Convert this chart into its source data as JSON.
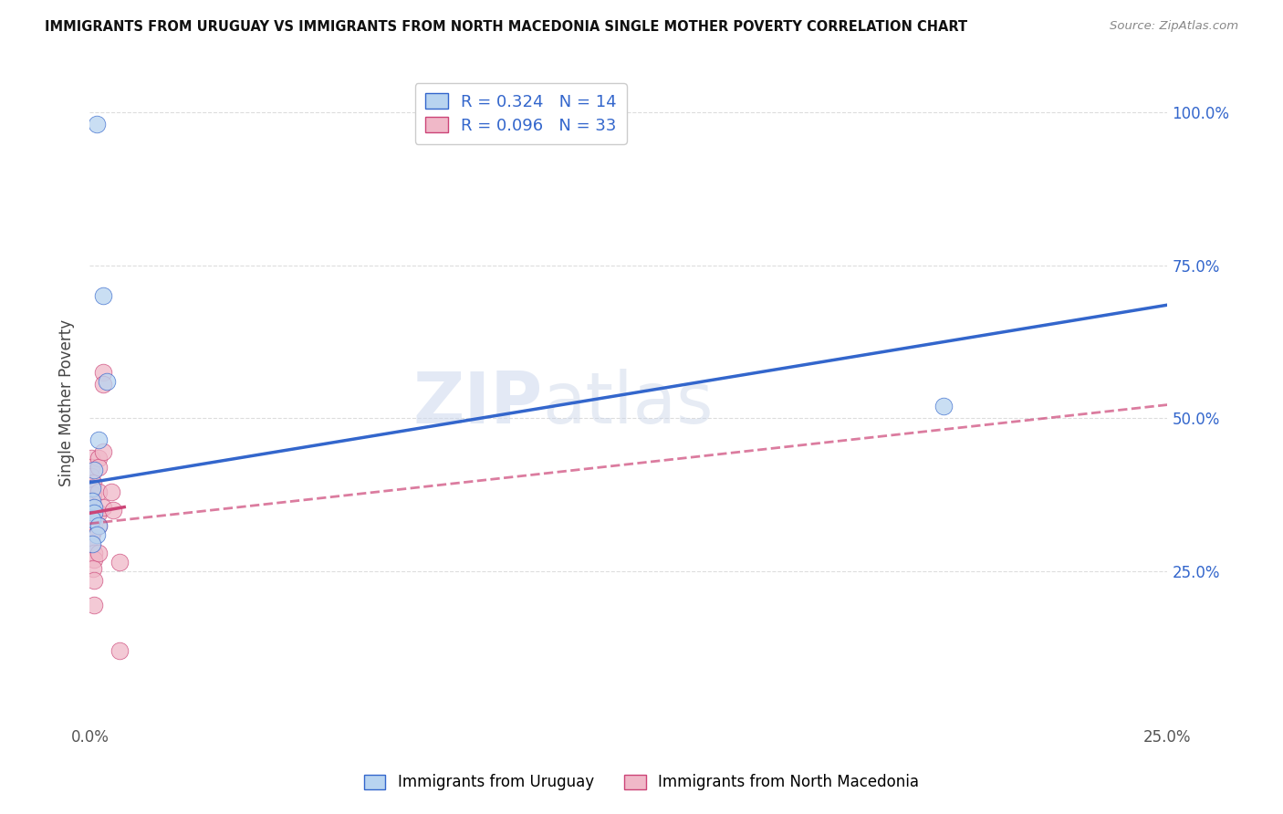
{
  "title": "IMMIGRANTS FROM URUGUAY VS IMMIGRANTS FROM NORTH MACEDONIA SINGLE MOTHER POVERTY CORRELATION CHART",
  "source": "Source: ZipAtlas.com",
  "ylabel": "Single Mother Poverty",
  "watermark_zip": "ZIP",
  "watermark_atlas": "atlas",
  "legend_label1": "Immigrants from Uruguay",
  "legend_label2": "Immigrants from North Macedonia",
  "legend_r1": "R = 0.324",
  "legend_n1": "N = 14",
  "legend_r2": "R = 0.096",
  "legend_n2": "N = 33",
  "uruguay_color": "#b8d4f0",
  "north_macedonia_color": "#f0b8c8",
  "trendline_uruguay_color": "#3366cc",
  "trendline_nm_color": "#cc4477",
  "background_color": "#ffffff",
  "grid_color": "#dddddd",
  "uruguay_points": [
    [
      0.0015,
      0.98
    ],
    [
      0.003,
      0.7
    ],
    [
      0.004,
      0.56
    ],
    [
      0.002,
      0.465
    ],
    [
      0.001,
      0.415
    ],
    [
      0.0005,
      0.385
    ],
    [
      0.0005,
      0.365
    ],
    [
      0.001,
      0.355
    ],
    [
      0.001,
      0.345
    ],
    [
      0.0005,
      0.335
    ],
    [
      0.002,
      0.325
    ],
    [
      0.0015,
      0.31
    ],
    [
      0.0005,
      0.295
    ],
    [
      0.198,
      0.52
    ]
  ],
  "nm_points": [
    [
      0.0003,
      0.435
    ],
    [
      0.0003,
      0.42
    ],
    [
      0.0003,
      0.405
    ],
    [
      0.0008,
      0.395
    ],
    [
      0.0005,
      0.385
    ],
    [
      0.0008,
      0.375
    ],
    [
      0.0003,
      0.365
    ],
    [
      0.001,
      0.355
    ],
    [
      0.0005,
      0.345
    ],
    [
      0.0005,
      0.335
    ],
    [
      0.001,
      0.325
    ],
    [
      0.0008,
      0.315
    ],
    [
      0.0003,
      0.305
    ],
    [
      0.0003,
      0.295
    ],
    [
      0.001,
      0.28
    ],
    [
      0.001,
      0.27
    ],
    [
      0.0008,
      0.255
    ],
    [
      0.001,
      0.235
    ],
    [
      0.001,
      0.195
    ],
    [
      0.002,
      0.435
    ],
    [
      0.002,
      0.42
    ],
    [
      0.002,
      0.38
    ],
    [
      0.003,
      0.575
    ],
    [
      0.003,
      0.555
    ],
    [
      0.002,
      0.345
    ],
    [
      0.002,
      0.325
    ],
    [
      0.002,
      0.28
    ],
    [
      0.003,
      0.445
    ],
    [
      0.003,
      0.355
    ],
    [
      0.005,
      0.38
    ],
    [
      0.0055,
      0.35
    ],
    [
      0.007,
      0.265
    ],
    [
      0.007,
      0.12
    ]
  ],
  "trendline_uru_x0": 0.0,
  "trendline_uru_y0": 0.395,
  "trendline_uru_x1": 0.25,
  "trendline_uru_y1": 0.685,
  "trendline_nm_x0": 0.0,
  "trendline_nm_y0": 0.328,
  "trendline_nm_x1": 0.25,
  "trendline_nm_y1": 0.522,
  "trendline_nm_short_x0": 0.0,
  "trendline_nm_short_y0": 0.345,
  "trendline_nm_short_x1": 0.008,
  "trendline_nm_short_y1": 0.355,
  "xlim": [
    0,
    0.25
  ],
  "ylim": [
    0,
    1.05
  ],
  "yticks": [
    0.25,
    0.5,
    0.75,
    1.0
  ],
  "ytick_labels": [
    "25.0%",
    "50.0%",
    "75.0%",
    "100.0%"
  ],
  "xtick_labels_show": [
    "0.0%",
    "25.0%"
  ]
}
